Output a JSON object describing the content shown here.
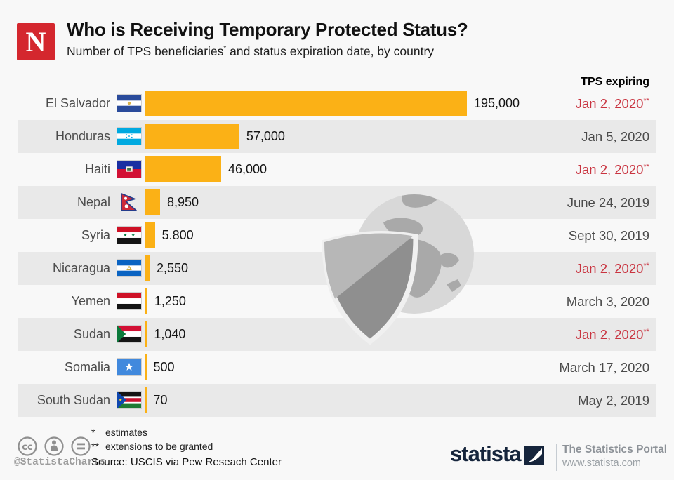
{
  "header": {
    "brand_letter": "N",
    "title": "Who is Receiving Temporary Protected Status?",
    "subtitle_before_sup": "Number of TPS beneficiaries",
    "subtitle_sup": "*",
    "subtitle_after_sup": " and status expiration date, by country"
  },
  "column_header": "TPS expiring",
  "chart_data": {
    "type": "bar",
    "orientation": "horizontal",
    "title": "Who is Receiving Temporary Protected Status?",
    "subtitle": "Number of TPS beneficiaries* and status expiration date, by country",
    "value_axis_max": 195000,
    "bar_color": "#fbb116",
    "categories": [
      "El Salvador",
      "Honduras",
      "Haiti",
      "Nepal",
      "Syria",
      "Nicaragua",
      "Yemen",
      "Sudan",
      "Somalia",
      "South Sudan"
    ],
    "values": [
      195000,
      57000,
      46000,
      8950,
      5800,
      2550,
      1250,
      1040,
      500,
      70
    ],
    "rows": [
      {
        "country": "El Salvador",
        "flag": "el-salvador",
        "value": 195000,
        "value_label": "195,000",
        "expiry": "Jan 2, 2020",
        "expiry_note": "**",
        "highlight": true
      },
      {
        "country": "Honduras",
        "flag": "honduras",
        "value": 57000,
        "value_label": "57,000",
        "expiry": "Jan 5, 2020",
        "expiry_note": "",
        "highlight": false
      },
      {
        "country": "Haiti",
        "flag": "haiti",
        "value": 46000,
        "value_label": "46,000",
        "expiry": "Jan 2, 2020",
        "expiry_note": "**",
        "highlight": true
      },
      {
        "country": "Nepal",
        "flag": "nepal",
        "value": 8950,
        "value_label": "8,950",
        "expiry": "June 24, 2019",
        "expiry_note": "",
        "highlight": false
      },
      {
        "country": "Syria",
        "flag": "syria",
        "value": 5800,
        "value_label": "5.800",
        "expiry": "Sept 30, 2019",
        "expiry_note": "",
        "highlight": false
      },
      {
        "country": "Nicaragua",
        "flag": "nicaragua",
        "value": 2550,
        "value_label": "2,550",
        "expiry": "Jan 2, 2020",
        "expiry_note": "**",
        "highlight": true
      },
      {
        "country": "Yemen",
        "flag": "yemen",
        "value": 1250,
        "value_label": "1,250",
        "expiry": "March 3, 2020",
        "expiry_note": "",
        "highlight": false
      },
      {
        "country": "Sudan",
        "flag": "sudan",
        "value": 1040,
        "value_label": "1,040",
        "expiry": "Jan 2, 2020",
        "expiry_note": "**",
        "highlight": true
      },
      {
        "country": "Somalia",
        "flag": "somalia",
        "value": 500,
        "value_label": "500",
        "expiry": "March 17, 2020",
        "expiry_note": "",
        "highlight": false
      },
      {
        "country": "South Sudan",
        "flag": "south-sudan",
        "value": 70,
        "value_label": "70",
        "expiry": "May 2, 2019",
        "expiry_note": "",
        "highlight": false
      }
    ]
  },
  "footnotes": [
    {
      "marker": "*",
      "text": "estimates"
    },
    {
      "marker": "**",
      "text": "extensions to be granted"
    }
  ],
  "source": "Source: USCIS via Pew Reseach Center",
  "credit_handle": "@StatistaCharts",
  "branding": {
    "wordmark": "statista",
    "tagline": "The Statistics Portal",
    "url": "www.statista.com"
  },
  "colors": {
    "bar": "#fbb116",
    "highlight_date": "#c93440",
    "row_alt": "#e9e9e9",
    "brand_red": "#d4272e",
    "statista_navy": "#16253c"
  }
}
